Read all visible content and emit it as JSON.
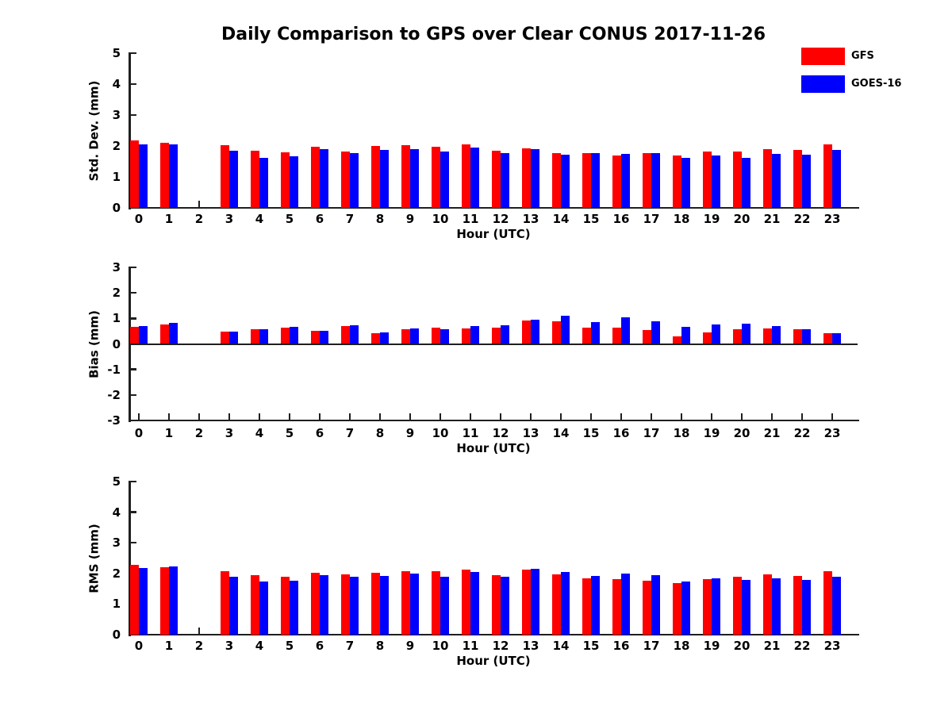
{
  "title": "Daily Comparison to GPS over Clear CONUS 2017-11-26",
  "legend": {
    "position": "top-right",
    "items": [
      {
        "label": "GFS",
        "color": "#ff0000"
      },
      {
        "label": "GOES-16",
        "color": "#0000ff"
      }
    ]
  },
  "colors": {
    "gfs": "#ff0000",
    "goes16": "#0000ff",
    "axis": "#1f1f1f",
    "text": "#000000"
  },
  "chart_data": [
    {
      "type": "bar",
      "name": "std-dev",
      "ylabel": "Std. Dev. (mm)",
      "xlabel": "Hour (UTC)",
      "ylim": [
        0,
        5
      ],
      "yticks": [
        0,
        1,
        2,
        3,
        4,
        5
      ],
      "grid": false,
      "missing_hours": [
        2
      ],
      "categories": [
        "0",
        "1",
        "2",
        "3",
        "4",
        "5",
        "6",
        "7",
        "8",
        "9",
        "10",
        "11",
        "12",
        "13",
        "14",
        "15",
        "16",
        "17",
        "18",
        "19",
        "20",
        "21",
        "22",
        "23"
      ],
      "series": [
        {
          "name": "GFS",
          "color": "#ff0000",
          "values": [
            2.18,
            2.1,
            null,
            2.03,
            1.84,
            1.8,
            1.97,
            1.83,
            1.99,
            2.03,
            1.97,
            2.05,
            1.85,
            1.93,
            1.76,
            1.76,
            1.7,
            1.76,
            1.7,
            1.81,
            1.83,
            1.9,
            1.88,
            2.06
          ]
        },
        {
          "name": "GOES-16",
          "color": "#0000ff",
          "values": [
            2.05,
            2.06,
            null,
            1.84,
            1.62,
            1.66,
            1.91,
            1.77,
            1.86,
            1.9,
            1.83,
            1.96,
            1.78,
            1.9,
            1.73,
            1.77,
            1.74,
            1.76,
            1.61,
            1.7,
            1.61,
            1.74,
            1.73,
            1.86
          ]
        }
      ]
    },
    {
      "type": "bar",
      "name": "bias",
      "ylabel": "Bias (mm)",
      "xlabel": "Hour (UTC)",
      "ylim": [
        -3,
        3
      ],
      "yticks": [
        -3,
        -2,
        -1,
        0,
        1,
        2,
        3
      ],
      "grid": false,
      "missing_hours": [
        2
      ],
      "categories": [
        "0",
        "1",
        "2",
        "3",
        "4",
        "5",
        "6",
        "7",
        "8",
        "9",
        "10",
        "11",
        "12",
        "13",
        "14",
        "15",
        "16",
        "17",
        "18",
        "19",
        "20",
        "21",
        "22",
        "23"
      ],
      "series": [
        {
          "name": "GFS",
          "color": "#ff0000",
          "values": [
            0.66,
            0.76,
            null,
            0.47,
            0.57,
            0.63,
            0.52,
            0.71,
            0.42,
            0.58,
            0.63,
            0.6,
            0.65,
            0.93,
            0.89,
            0.63,
            0.65,
            0.55,
            0.28,
            0.46,
            0.58,
            0.61,
            0.56,
            0.42
          ]
        },
        {
          "name": "GOES-16",
          "color": "#0000ff",
          "values": [
            0.71,
            0.83,
            null,
            0.49,
            0.58,
            0.66,
            0.51,
            0.73,
            0.45,
            0.6,
            0.58,
            0.69,
            0.73,
            0.96,
            1.1,
            0.86,
            1.04,
            0.9,
            0.67,
            0.76,
            0.8,
            0.71,
            0.59,
            0.43
          ]
        }
      ]
    },
    {
      "type": "bar",
      "name": "rms",
      "ylabel": "RMS (mm)",
      "xlabel": "Hour (UTC)",
      "ylim": [
        0,
        5
      ],
      "yticks": [
        0,
        1,
        2,
        3,
        4,
        5
      ],
      "grid": false,
      "missing_hours": [
        2
      ],
      "categories": [
        "0",
        "1",
        "2",
        "3",
        "4",
        "5",
        "6",
        "7",
        "8",
        "9",
        "10",
        "11",
        "12",
        "13",
        "14",
        "15",
        "16",
        "17",
        "18",
        "19",
        "20",
        "21",
        "22",
        "23"
      ],
      "series": [
        {
          "name": "GFS",
          "color": "#ff0000",
          "values": [
            2.28,
            2.2,
            null,
            2.08,
            1.94,
            1.9,
            2.02,
            1.97,
            2.01,
            2.08,
            2.06,
            2.13,
            1.95,
            2.13,
            1.98,
            1.85,
            1.82,
            1.77,
            1.69,
            1.82,
            1.88,
            1.97,
            1.93,
            2.08
          ]
        },
        {
          "name": "GOES-16",
          "color": "#0000ff",
          "values": [
            2.17,
            2.22,
            null,
            1.88,
            1.73,
            1.77,
            1.95,
            1.89,
            1.91,
            2.0,
            1.9,
            2.05,
            1.9,
            2.14,
            2.04,
            1.92,
            2.0,
            1.95,
            1.74,
            1.84,
            1.78,
            1.84,
            1.78,
            1.9
          ]
        }
      ]
    }
  ]
}
